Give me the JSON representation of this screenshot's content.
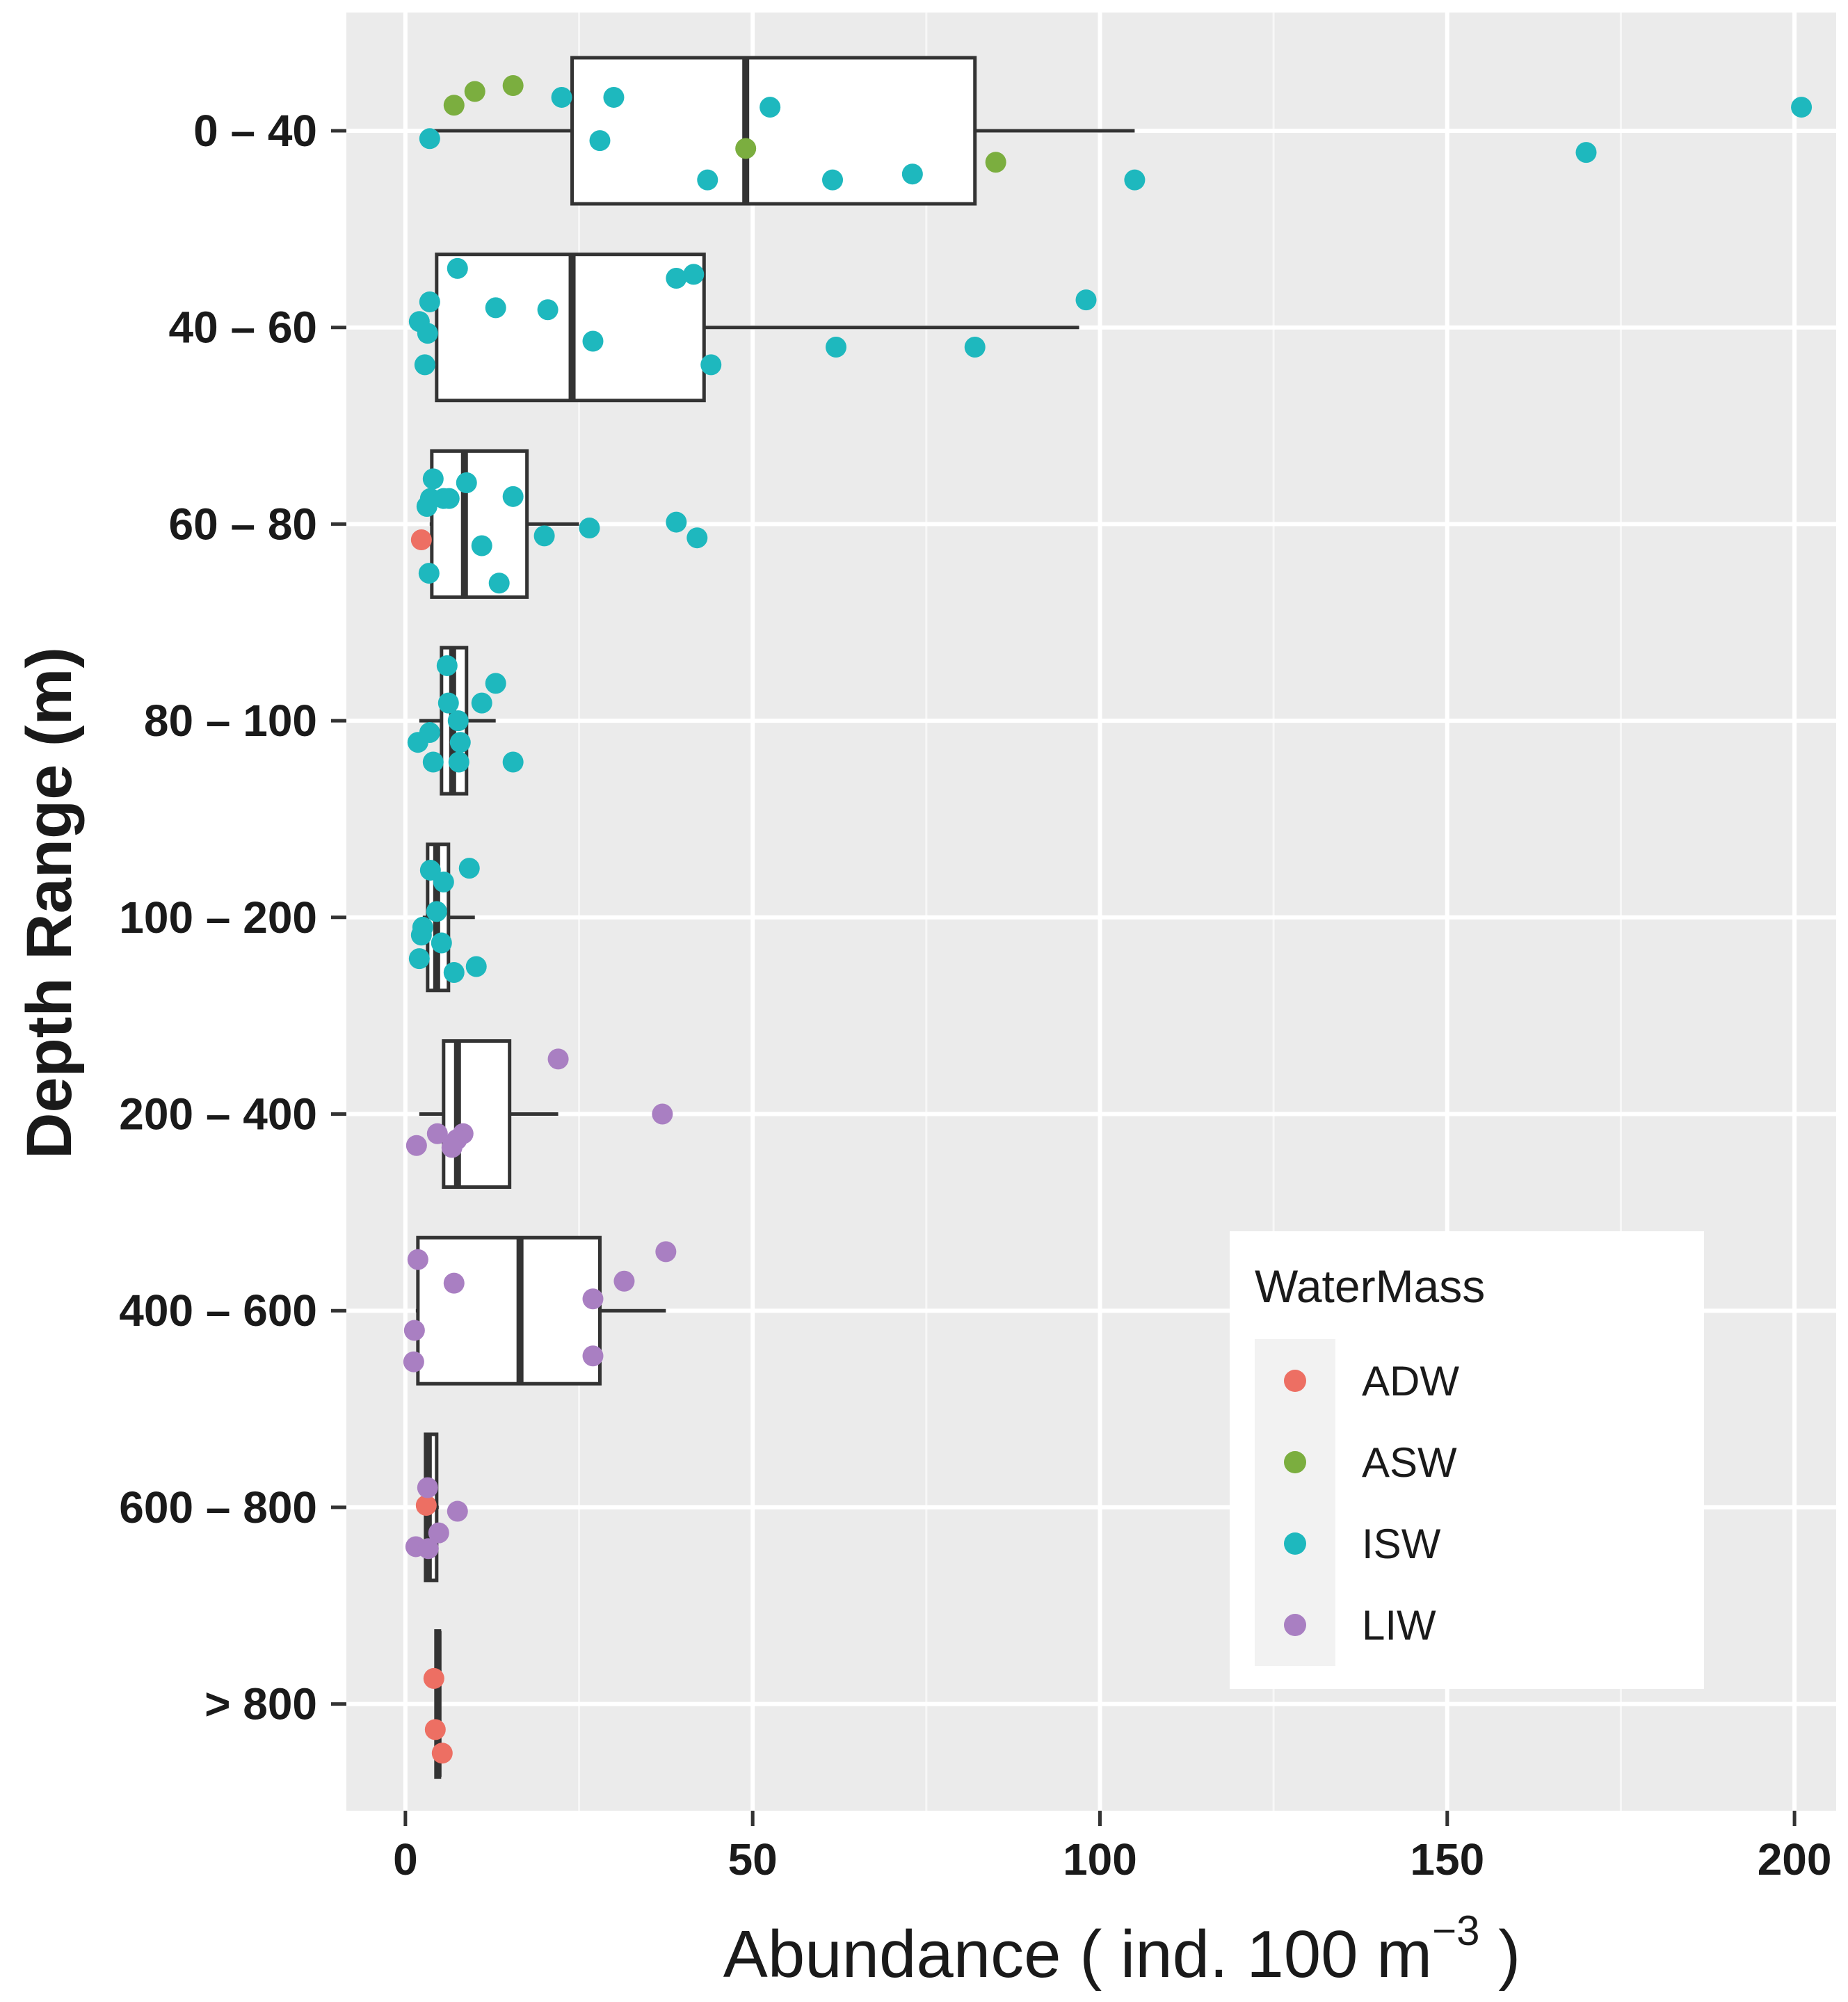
{
  "chart_data": {
    "type": "boxplot",
    "xlabel": "Abundance (ind. 100 m⁻³)",
    "xlabel_parts": {
      "main": "Abundance  ( ind.  100 m",
      "sup": "−3",
      "close": " )"
    },
    "ylabel": "Depth Range (m)",
    "xlim": [
      -8.5,
      206
    ],
    "x_ticks": [
      0,
      50,
      100,
      150,
      200
    ],
    "x_tick_labels": [
      "0",
      "50",
      "100",
      "150",
      "200"
    ],
    "grid": true,
    "legend": {
      "title": "WaterMass",
      "placement": "bottom-right",
      "entries": [
        {
          "name": "ADW",
          "color": "#ED6F63"
        },
        {
          "name": "ASW",
          "color": "#7BAE3F"
        },
        {
          "name": "ISW",
          "color": "#1EB8BE"
        },
        {
          "name": "LIW",
          "color": "#A97FC2"
        }
      ]
    },
    "categories": [
      "0 – 40",
      "40 – 60",
      "60 – 80",
      "80 – 100",
      "100 – 200",
      "200 – 400",
      "400 – 600",
      "600 – 800",
      "> 800"
    ],
    "boxes": [
      {
        "category": "0 – 40",
        "whisker_low": 4,
        "q1": 24,
        "median": 49,
        "q3": 82,
        "whisker_high": 105
      },
      {
        "category": "40 – 60",
        "whisker_low": 4,
        "q1": 4.5,
        "median": 24,
        "q3": 43,
        "whisker_high": 97
      },
      {
        "category": "60 – 80",
        "whisker_low": 3.5,
        "q1": 3.8,
        "median": 8.5,
        "q3": 17.5,
        "whisker_high": 25
      },
      {
        "category": "80 – 100",
        "whisker_low": 2,
        "q1": 5.2,
        "median": 6.8,
        "q3": 8.8,
        "whisker_high": 13
      },
      {
        "category": "100 – 200",
        "whisker_low": 2.5,
        "q1": 3.2,
        "median": 4.5,
        "q3": 6.2,
        "whisker_high": 10
      },
      {
        "category": "200 – 400",
        "whisker_low": 2,
        "q1": 5.5,
        "median": 7.5,
        "q3": 15,
        "whisker_high": 22
      },
      {
        "category": "400 – 600",
        "whisker_low": 1.5,
        "q1": 1.8,
        "median": 16.5,
        "q3": 28,
        "whisker_high": 37.5
      },
      {
        "category": "600 – 800",
        "whisker_low": 2.6,
        "q1": 2.9,
        "median": 3.3,
        "q3": 4.5,
        "whisker_high": 4.8
      },
      {
        "category": "> 800",
        "whisker_low": 4.3,
        "q1": 4.4,
        "median": 4.7,
        "q3": 4.9,
        "whisker_high": 5.1
      }
    ],
    "points": [
      {
        "category": "0 – 40",
        "water_mass": "ASW",
        "x": 7,
        "jitter": 0.13
      },
      {
        "category": "0 – 40",
        "water_mass": "ASW",
        "x": 10,
        "jitter": 0.2
      },
      {
        "category": "0 – 40",
        "water_mass": "ASW",
        "x": 15.5,
        "jitter": 0.23
      },
      {
        "category": "0 – 40",
        "water_mass": "ASW",
        "x": 49,
        "jitter": -0.09
      },
      {
        "category": "0 – 40",
        "water_mass": "ASW",
        "x": 85,
        "jitter": -0.16
      },
      {
        "category": "0 – 40",
        "water_mass": "ISW",
        "x": 3.5,
        "jitter": -0.04
      },
      {
        "category": "0 – 40",
        "water_mass": "ISW",
        "x": 22.5,
        "jitter": 0.17
      },
      {
        "category": "0 – 40",
        "water_mass": "ISW",
        "x": 28,
        "jitter": -0.05
      },
      {
        "category": "0 – 40",
        "water_mass": "ISW",
        "x": 30,
        "jitter": 0.17
      },
      {
        "category": "0 – 40",
        "water_mass": "ISW",
        "x": 43.5,
        "jitter": -0.25
      },
      {
        "category": "0 – 40",
        "water_mass": "ISW",
        "x": 52.5,
        "jitter": 0.12
      },
      {
        "category": "0 – 40",
        "water_mass": "ISW",
        "x": 61.5,
        "jitter": -0.25
      },
      {
        "category": "0 – 40",
        "water_mass": "ISW",
        "x": 73,
        "jitter": -0.22
      },
      {
        "category": "0 – 40",
        "water_mass": "ISW",
        "x": 105,
        "jitter": -0.25
      },
      {
        "category": "0 – 40",
        "water_mass": "ISW",
        "x": 170,
        "jitter": -0.11
      },
      {
        "category": "0 – 40",
        "water_mass": "ISW",
        "x": 201,
        "jitter": 0.12
      },
      {
        "category": "40 – 60",
        "water_mass": "ISW",
        "x": 7.5,
        "jitter": 0.3
      },
      {
        "category": "40 – 60",
        "water_mass": "ISW",
        "x": 39,
        "jitter": 0.25
      },
      {
        "category": "40 – 60",
        "water_mass": "ISW",
        "x": 41.5,
        "jitter": 0.27
      },
      {
        "category": "40 – 60",
        "water_mass": "ISW",
        "x": 3.5,
        "jitter": 0.13
      },
      {
        "category": "40 – 60",
        "water_mass": "ISW",
        "x": 13,
        "jitter": 0.1
      },
      {
        "category": "40 – 60",
        "water_mass": "ISW",
        "x": 20.5,
        "jitter": 0.09
      },
      {
        "category": "40 – 60",
        "water_mass": "ISW",
        "x": 98,
        "jitter": 0.14
      },
      {
        "category": "40 – 60",
        "water_mass": "ISW",
        "x": 2,
        "jitter": 0.03
      },
      {
        "category": "40 – 60",
        "water_mass": "ISW",
        "x": 3.2,
        "jitter": -0.03
      },
      {
        "category": "40 – 60",
        "water_mass": "ISW",
        "x": 27,
        "jitter": -0.07
      },
      {
        "category": "40 – 60",
        "water_mass": "ISW",
        "x": 62,
        "jitter": -0.1
      },
      {
        "category": "40 – 60",
        "water_mass": "ISW",
        "x": 82,
        "jitter": -0.1
      },
      {
        "category": "40 – 60",
        "water_mass": "ISW",
        "x": 2.8,
        "jitter": -0.19
      },
      {
        "category": "40 – 60",
        "water_mass": "ISW",
        "x": 44,
        "jitter": -0.19
      },
      {
        "category": "60 – 80",
        "water_mass": "ADW",
        "x": 2.3,
        "jitter": -0.08
      },
      {
        "category": "60 – 80",
        "water_mass": "ISW",
        "x": 4,
        "jitter": 0.23
      },
      {
        "category": "60 – 80",
        "water_mass": "ISW",
        "x": 8.8,
        "jitter": 0.21
      },
      {
        "category": "60 – 80",
        "water_mass": "ISW",
        "x": 3.6,
        "jitter": 0.13
      },
      {
        "category": "60 – 80",
        "water_mass": "ISW",
        "x": 5.5,
        "jitter": 0.13
      },
      {
        "category": "60 – 80",
        "water_mass": "ISW",
        "x": 6.3,
        "jitter": 0.13
      },
      {
        "category": "60 – 80",
        "water_mass": "ISW",
        "x": 15.5,
        "jitter": 0.14
      },
      {
        "category": "60 – 80",
        "water_mass": "ISW",
        "x": 3.1,
        "jitter": 0.09
      },
      {
        "category": "60 – 80",
        "water_mass": "ISW",
        "x": 39,
        "jitter": 0.01
      },
      {
        "category": "60 – 80",
        "water_mass": "ISW",
        "x": 26.5,
        "jitter": -0.02
      },
      {
        "category": "60 – 80",
        "water_mass": "ISW",
        "x": 20,
        "jitter": -0.06
      },
      {
        "category": "60 – 80",
        "water_mass": "ISW",
        "x": 42,
        "jitter": -0.07
      },
      {
        "category": "60 – 80",
        "water_mass": "ISW",
        "x": 11,
        "jitter": -0.11
      },
      {
        "category": "60 – 80",
        "water_mass": "ISW",
        "x": 3.4,
        "jitter": -0.25
      },
      {
        "category": "60 – 80",
        "water_mass": "ISW",
        "x": 13.5,
        "jitter": -0.3
      },
      {
        "category": "80 – 100",
        "water_mass": "ISW",
        "x": 6,
        "jitter": 0.28
      },
      {
        "category": "80 – 100",
        "water_mass": "ISW",
        "x": 13,
        "jitter": 0.19
      },
      {
        "category": "80 – 100",
        "water_mass": "ISW",
        "x": 6.2,
        "jitter": 0.09
      },
      {
        "category": "80 – 100",
        "water_mass": "ISW",
        "x": 11,
        "jitter": 0.09
      },
      {
        "category": "80 – 100",
        "water_mass": "ISW",
        "x": 7.6,
        "jitter": 0
      },
      {
        "category": "80 – 100",
        "water_mass": "ISW",
        "x": 3.5,
        "jitter": -0.06
      },
      {
        "category": "80 – 100",
        "water_mass": "ISW",
        "x": 1.8,
        "jitter": -0.11
      },
      {
        "category": "80 – 100",
        "water_mass": "ISW",
        "x": 7.9,
        "jitter": -0.11
      },
      {
        "category": "80 – 100",
        "water_mass": "ISW",
        "x": 4,
        "jitter": -0.21
      },
      {
        "category": "80 – 100",
        "water_mass": "ISW",
        "x": 7.7,
        "jitter": -0.21
      },
      {
        "category": "80 – 100",
        "water_mass": "ISW",
        "x": 15.5,
        "jitter": -0.21
      },
      {
        "category": "100 – 200",
        "water_mass": "ISW",
        "x": 9.2,
        "jitter": 0.25
      },
      {
        "category": "100 – 200",
        "water_mass": "ISW",
        "x": 3.6,
        "jitter": 0.24
      },
      {
        "category": "100 – 200",
        "water_mass": "ISW",
        "x": 5.5,
        "jitter": 0.18
      },
      {
        "category": "100 – 200",
        "water_mass": "ISW",
        "x": 4.5,
        "jitter": 0.03
      },
      {
        "category": "100 – 200",
        "water_mass": "ISW",
        "x": 2.5,
        "jitter": -0.05
      },
      {
        "category": "100 – 200",
        "water_mass": "ISW",
        "x": 2.3,
        "jitter": -0.09
      },
      {
        "category": "100 – 200",
        "water_mass": "ISW",
        "x": 5.2,
        "jitter": -0.13
      },
      {
        "category": "100 – 200",
        "water_mass": "ISW",
        "x": 2,
        "jitter": -0.21
      },
      {
        "category": "100 – 200",
        "water_mass": "ISW",
        "x": 10.2,
        "jitter": -0.25
      },
      {
        "category": "100 – 200",
        "water_mass": "ISW",
        "x": 7,
        "jitter": -0.28
      },
      {
        "category": "200 – 400",
        "water_mass": "LIW",
        "x": 22,
        "jitter": 0.28
      },
      {
        "category": "200 – 400",
        "water_mass": "LIW",
        "x": 37,
        "jitter": 0
      },
      {
        "category": "200 – 400",
        "water_mass": "LIW",
        "x": 4.6,
        "jitter": -0.1
      },
      {
        "category": "200 – 400",
        "water_mass": "LIW",
        "x": 8.3,
        "jitter": -0.1
      },
      {
        "category": "200 – 400",
        "water_mass": "LIW",
        "x": 7.4,
        "jitter": -0.13
      },
      {
        "category": "200 – 400",
        "water_mass": "LIW",
        "x": 1.6,
        "jitter": -0.16
      },
      {
        "category": "200 – 400",
        "water_mass": "LIW",
        "x": 6.7,
        "jitter": -0.17
      },
      {
        "category": "400 – 600",
        "water_mass": "LIW",
        "x": 37.5,
        "jitter": 0.3
      },
      {
        "category": "400 – 600",
        "water_mass": "LIW",
        "x": 1.8,
        "jitter": 0.26
      },
      {
        "category": "400 – 600",
        "water_mass": "LIW",
        "x": 7,
        "jitter": 0.14
      },
      {
        "category": "400 – 600",
        "water_mass": "LIW",
        "x": 31.5,
        "jitter": 0.15
      },
      {
        "category": "400 – 600",
        "water_mass": "LIW",
        "x": 27,
        "jitter": 0.06
      },
      {
        "category": "400 – 600",
        "water_mass": "LIW",
        "x": 1.3,
        "jitter": -0.1
      },
      {
        "category": "400 – 600",
        "water_mass": "LIW",
        "x": 27,
        "jitter": -0.23
      },
      {
        "category": "400 – 600",
        "water_mass": "LIW",
        "x": 1.2,
        "jitter": -0.26
      },
      {
        "category": "600 – 800",
        "water_mass": "ADW",
        "x": 3,
        "jitter": 0.01
      },
      {
        "category": "600 – 800",
        "water_mass": "LIW",
        "x": 3.2,
        "jitter": 0.1
      },
      {
        "category": "600 – 800",
        "water_mass": "LIW",
        "x": 7.5,
        "jitter": -0.02
      },
      {
        "category": "600 – 800",
        "water_mass": "LIW",
        "x": 4.8,
        "jitter": -0.13
      },
      {
        "category": "600 – 800",
        "water_mass": "LIW",
        "x": 1.5,
        "jitter": -0.2
      },
      {
        "category": "600 – 800",
        "water_mass": "LIW",
        "x": 3.3,
        "jitter": -0.21
      },
      {
        "category": "> 800",
        "water_mass": "ADW",
        "x": 4.1,
        "jitter": 0.13
      },
      {
        "category": "> 800",
        "water_mass": "ADW",
        "x": 4.3,
        "jitter": -0.13
      },
      {
        "category": "> 800",
        "water_mass": "ADW",
        "x": 5.3,
        "jitter": -0.25
      }
    ]
  }
}
